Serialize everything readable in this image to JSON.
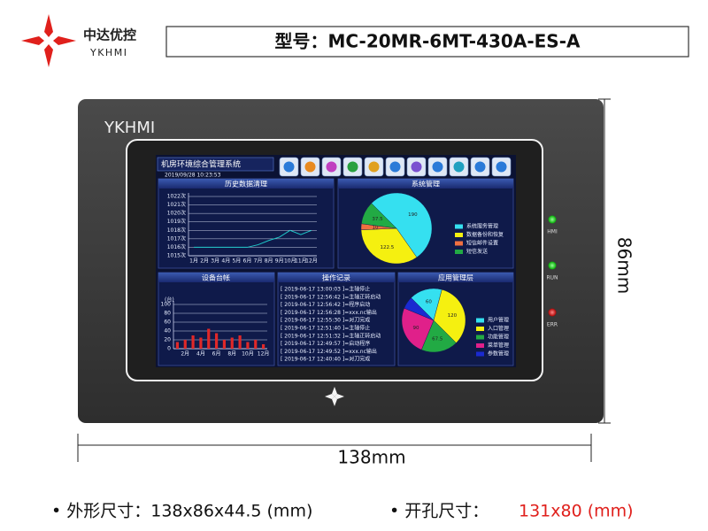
{
  "header": {
    "logo_name": "中达优控",
    "logo_sub": "YKHMI",
    "model": "型号：MC-20MR-6MT-430A-ES-A"
  },
  "device": {
    "brand": "YKHMI",
    "indicators": [
      "HMI",
      "RUN",
      "ERR"
    ],
    "width_label": "138mm",
    "height_label": "86mm"
  },
  "screen": {
    "title": "机房环境综合管理系统",
    "datetime": "2019/09/28 10:23:53",
    "history": {
      "type": "line",
      "title": "历史数据清理",
      "categories": [
        "1月",
        "2月",
        "3月",
        "4月",
        "5月",
        "6月",
        "7月",
        "8月",
        "9月",
        "10月",
        "11月",
        "12月"
      ],
      "values": [
        1016,
        1016,
        1016,
        1016,
        1016,
        1016,
        1016.3,
        1016.8,
        1017.2,
        1018,
        1017.5,
        1018
      ],
      "color": "#1ec8c8",
      "ylim": [
        1015,
        1022
      ],
      "yticks": [
        {
          "value": 1015,
          "label": "1015次"
        },
        {
          "value": 1016,
          "label": "1016次"
        },
        {
          "value": 1017,
          "label": "1017次"
        },
        {
          "value": 1018,
          "label": "1018次"
        },
        {
          "value": 1019,
          "label": "1019次"
        },
        {
          "value": 1020,
          "label": "1020次"
        },
        {
          "value": 1021,
          "label": "1021次"
        },
        {
          "value": 1022,
          "label": "1022次"
        }
      ],
      "grid": true
    },
    "system": {
      "type": "pie",
      "title": "系统管理",
      "categories": [
        "系统服务管理",
        "数据备份和恢复",
        "短信邮件设置",
        "短信发送"
      ],
      "values": [
        190,
        122.5,
        10,
        37.5
      ],
      "colors": [
        "#35e0f0",
        "#f5f010",
        "#f07040",
        "#22aa44"
      ]
    },
    "devices": {
      "type": "bar",
      "title": "设备台帐",
      "y_label": "(台)",
      "categories": [
        null,
        "2月",
        null,
        "4月",
        null,
        "6月",
        null,
        "8月",
        null,
        "10月",
        null,
        "12月"
      ],
      "values": [
        15,
        20,
        30,
        25,
        45,
        35,
        20,
        25,
        30,
        15,
        20,
        10
      ],
      "color": "#e02828",
      "ylim": [
        0,
        100
      ],
      "yticks": [
        0,
        20,
        40,
        60,
        80,
        100
      ],
      "grid": true
    },
    "log": {
      "title": "操作记录",
      "entries": [
        "[ 2019-06-17 13:00:03 ]=主轴停止",
        "[ 2019-06-17 12:56:42 ]=主轴正转启动",
        "[ 2019-06-17 12:56:42 ]=程序启动",
        "[ 2019-06-17 12:56:28 ]=xxx.nc输出",
        "[ 2019-06-17 12:55:30 ]=对刀完成",
        "[ 2019-06-17 12:51:40 ]=主轴停止",
        "[ 2019-06-17 12:51:32 ]=主轴正转启动",
        "[ 2019-06-17 12:49:57 ]=启动程序",
        "[ 2019-06-17 12:49:52 ]=xxx.nc输出",
        "[ 2019-06-17 12:40:40 ]=对刀完成"
      ]
    },
    "apps": {
      "type": "pie",
      "title": "应用管理层",
      "categories": [
        "用户管理",
        "入口管理",
        "功能管理",
        "菜单管理",
        "参数管理"
      ],
      "values": [
        60,
        120,
        67.5,
        90,
        22.5
      ],
      "value_labels": [
        "60",
        "120",
        "67.5",
        "90",
        null
      ],
      "colors": [
        "#35e0f0",
        "#f5f010",
        "#22aa44",
        "#e0208a",
        "#1a2ad0"
      ]
    }
  },
  "specs": {
    "outline": "• 外形尺寸：138x86x44.5 (mm)",
    "cutout_label": "• 开孔尺寸：",
    "cutout_value": "131x80 (mm)"
  }
}
